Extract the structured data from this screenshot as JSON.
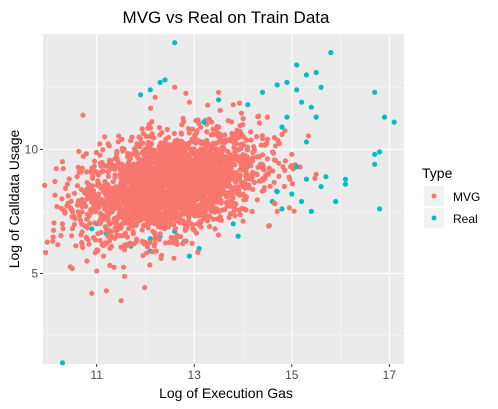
{
  "chart_data": {
    "type": "scatter",
    "title": "MVG vs Real on Train Data",
    "xlabel": "Log of Execution Gas",
    "ylabel": "Log of Calldata Usage",
    "xlim": [
      9.9,
      17.3
    ],
    "ylim": [
      1.35,
      14.65
    ],
    "x_ticks": [
      11,
      13,
      15,
      17
    ],
    "y_ticks": [
      5,
      10
    ],
    "grid": true,
    "legend": {
      "title": "Type",
      "position": "right",
      "entries": [
        {
          "label": "MVG",
          "color": "#F8766D"
        },
        {
          "label": "Real",
          "color": "#00BFC4"
        }
      ]
    },
    "series": [
      {
        "name": "MVG",
        "color": "#F8766D",
        "cloud": {
          "center_x": 12.5,
          "center_y": 8.6,
          "sd_x": 0.9,
          "sd_y": 1.05,
          "correlation": 0.35,
          "n": 2600
        },
        "points": [
          [
            10.1,
            6.3
          ],
          [
            10.3,
            7.0
          ],
          [
            10.4,
            8.6
          ],
          [
            10.5,
            7.5
          ],
          [
            10.6,
            8.9
          ],
          [
            10.7,
            6.2
          ],
          [
            10.5,
            5.2
          ],
          [
            10.8,
            5.5
          ],
          [
            11.0,
            5.1
          ],
          [
            11.2,
            4.3
          ],
          [
            10.9,
            4.2
          ],
          [
            11.5,
            3.9
          ],
          [
            14.5,
            11.3
          ],
          [
            14.8,
            10.6
          ],
          [
            13.8,
            11.8
          ],
          [
            13.5,
            12.3
          ],
          [
            12.6,
            12.5
          ],
          [
            12.2,
            12.1
          ],
          [
            12.9,
            11.9
          ],
          [
            15.0,
            9.8
          ],
          [
            14.7,
            7.5
          ],
          [
            15.5,
            9.0
          ]
        ]
      },
      {
        "name": "Real",
        "color": "#00BFC4",
        "points": [
          [
            12.6,
            14.3
          ],
          [
            12.3,
            12.7
          ],
          [
            12.4,
            12.8
          ],
          [
            11.9,
            12.2
          ],
          [
            12.1,
            12.4
          ],
          [
            13.2,
            11.1
          ],
          [
            13.5,
            12.0
          ],
          [
            14.1,
            11.8
          ],
          [
            14.4,
            12.3
          ],
          [
            14.7,
            12.6
          ],
          [
            14.9,
            12.7
          ],
          [
            15.1,
            12.4
          ],
          [
            15.3,
            13.0
          ],
          [
            15.1,
            13.4
          ],
          [
            15.5,
            13.1
          ],
          [
            15.5,
            11.3
          ],
          [
            15.2,
            11.9
          ],
          [
            15.8,
            13.9
          ],
          [
            15.6,
            12.5
          ],
          [
            15.4,
            11.7
          ],
          [
            14.9,
            11.3
          ],
          [
            15.3,
            10.3
          ],
          [
            15.1,
            9.3
          ],
          [
            14.8,
            10.9
          ],
          [
            15.0,
            8.2
          ],
          [
            15.3,
            8.8
          ],
          [
            15.6,
            8.5
          ],
          [
            15.7,
            8.9
          ],
          [
            15.2,
            7.9
          ],
          [
            14.8,
            7.6
          ],
          [
            15.4,
            7.5
          ],
          [
            14.6,
            7.9
          ],
          [
            14.7,
            8.3
          ],
          [
            16.1,
            8.8
          ],
          [
            16.1,
            8.6
          ],
          [
            16.7,
            9.8
          ],
          [
            16.7,
            9.4
          ],
          [
            16.8,
            9.9
          ],
          [
            16.7,
            12.3
          ],
          [
            16.9,
            11.3
          ],
          [
            17.1,
            11.1
          ],
          [
            16.8,
            7.6
          ],
          [
            15.9,
            7.9
          ],
          [
            13.8,
            7.0
          ],
          [
            12.3,
            6.5
          ],
          [
            12.6,
            6.7
          ],
          [
            13.1,
            6.0
          ],
          [
            12.8,
            6.3
          ],
          [
            11.7,
            6.1
          ],
          [
            12.1,
            5.9
          ],
          [
            11.0,
            7.0
          ],
          [
            10.9,
            6.8
          ],
          [
            10.3,
            1.4
          ],
          [
            12.1,
            6.4
          ],
          [
            13.9,
            6.5
          ],
          [
            11.2,
            6.6
          ],
          [
            12.9,
            5.7
          ],
          [
            11.8,
            7.8
          ],
          [
            12.7,
            7.2
          ],
          [
            13.4,
            9.2
          ]
        ]
      }
    ]
  }
}
